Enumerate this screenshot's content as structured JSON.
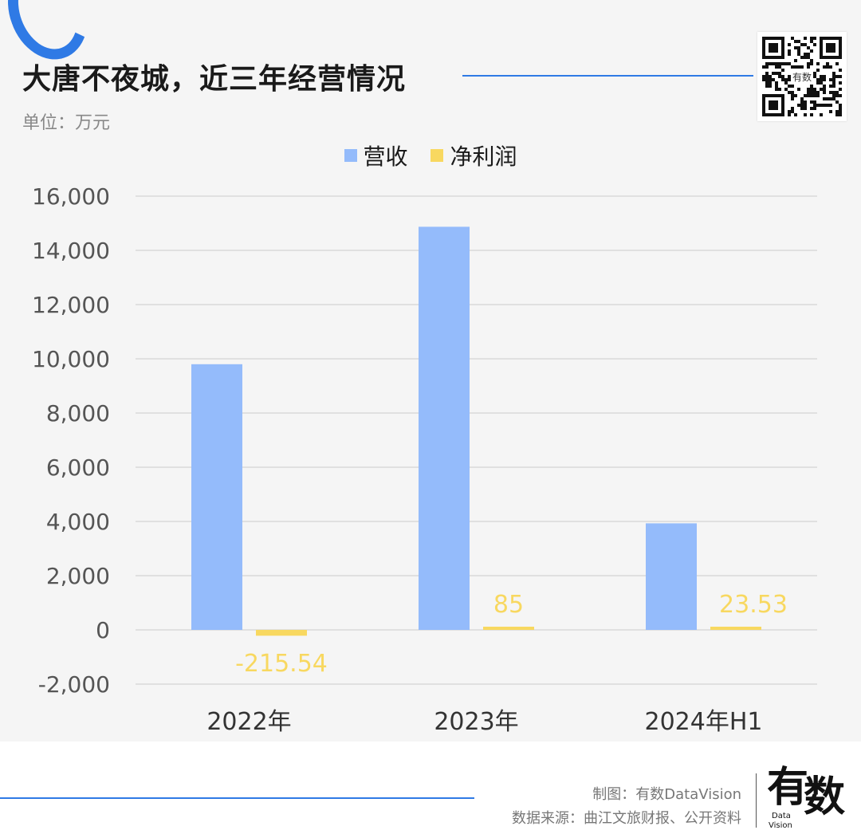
{
  "header": {
    "title": "大唐不夜城，近三年经营情况",
    "unit": "单位：万元",
    "qr_icon": "qr-code-icon",
    "qr_center_text": "有数"
  },
  "colors": {
    "accent": "#2f7ae5",
    "revenue": "#94bbfb",
    "net_profit": "#f8d860",
    "grid": "#d9d9d9",
    "axis_text": "#555555"
  },
  "chart_data": {
    "type": "bar",
    "categories": [
      "2022年",
      "2023年",
      "2024年H1"
    ],
    "series": [
      {
        "name": "营收",
        "values": [
          9800,
          14870,
          3930
        ]
      },
      {
        "name": "净利润",
        "values": [
          -215.54,
          85,
          23.53
        ]
      }
    ],
    "data_labels": {
      "净利润": [
        "-215.54",
        "85",
        "23.53"
      ]
    },
    "ylim": [
      -2000,
      16000
    ],
    "yticks": [
      -2000,
      0,
      2000,
      4000,
      6000,
      8000,
      10000,
      12000,
      14000,
      16000
    ],
    "ytick_labels": [
      "-2,000",
      "0",
      "2,000",
      "4,000",
      "6,000",
      "8,000",
      "10,000",
      "12,000",
      "14,000",
      "16,000"
    ],
    "grid": true,
    "legend_position": "top-center"
  },
  "footer": {
    "credit": "制图：有数DataVision",
    "source": "数据来源：曲江文旅财报、公开资料",
    "logo_char1": "有",
    "logo_char2": "数",
    "logo_sub1": "Data",
    "logo_sub2": "Vision"
  }
}
